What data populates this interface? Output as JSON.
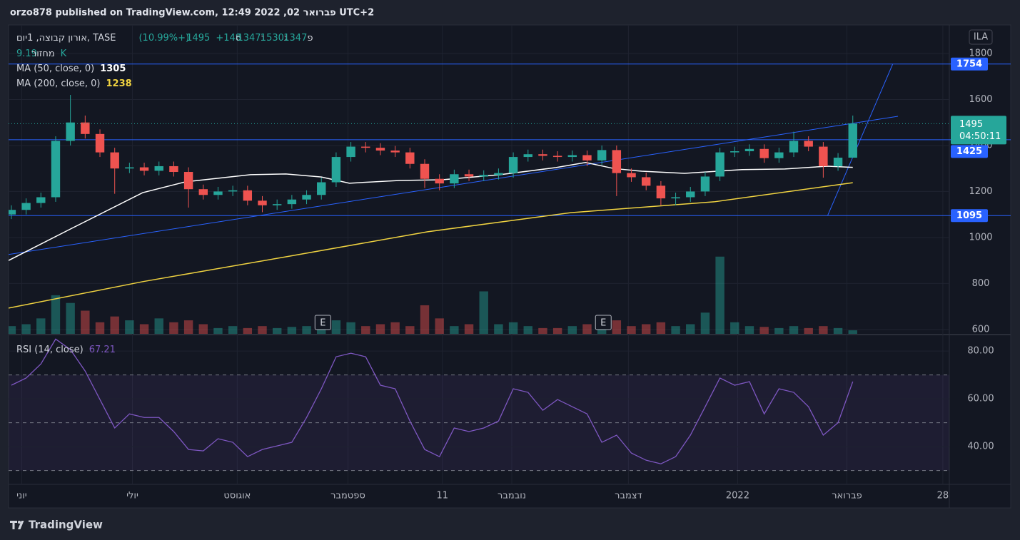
{
  "header": "orzo878 published on TradingView.com, 12:49 2022 ,02 פברואר UTC+2",
  "footer": "TradingView",
  "chart_data": [
    {
      "type": "candlestick",
      "symbol": "אורון קבוצה, 1יום, TASE",
      "ohlc_legend": [
        {
          "label": "פ",
          "value": 1347
        },
        {
          "label": "ג",
          "value": 1530
        },
        {
          "label": "נ",
          "value": 1347
        },
        {
          "label": "ס",
          "value": 1495
        }
      ],
      "change_label": "+148 (+10.99%)",
      "currency": "ILA",
      "countdown": "04:50:11",
      "up_color": "#26a69a",
      "down_color": "#ef5350",
      "x": [
        0,
        1,
        2,
        3,
        4,
        5,
        6,
        7,
        8,
        9,
        10,
        11,
        12,
        13,
        14,
        15,
        16,
        17,
        18,
        19,
        20,
        21,
        22,
        23,
        24,
        25,
        26,
        27,
        28,
        29,
        30,
        31,
        32,
        33,
        34,
        35,
        36,
        37,
        38,
        39,
        40,
        41,
        42,
        43,
        44,
        45,
        46,
        47,
        48,
        49,
        50,
        51,
        52,
        53,
        54,
        55,
        56,
        57
      ],
      "open": [
        1100,
        1120,
        1150,
        1175,
        1420,
        1500,
        1450,
        1370,
        1300,
        1305,
        1290,
        1310,
        1285,
        1210,
        1185,
        1200,
        1205,
        1160,
        1140,
        1145,
        1165,
        1185,
        1240,
        1350,
        1395,
        1390,
        1378,
        1370,
        1320,
        1255,
        1235,
        1275,
        1265,
        1272,
        1280,
        1350,
        1362,
        1355,
        1350,
        1358,
        1335,
        1380,
        1280,
        1262,
        1225,
        1170,
        1175,
        1200,
        1265,
        1370,
        1375,
        1385,
        1345,
        1370,
        1420,
        1395,
        1310,
        1347
      ],
      "high": [
        1140,
        1170,
        1195,
        1440,
        1620,
        1530,
        1470,
        1390,
        1325,
        1325,
        1330,
        1330,
        1305,
        1230,
        1220,
        1225,
        1225,
        1180,
        1165,
        1185,
        1205,
        1260,
        1370,
        1415,
        1415,
        1410,
        1398,
        1390,
        1340,
        1275,
        1295,
        1295,
        1292,
        1300,
        1370,
        1382,
        1382,
        1375,
        1378,
        1378,
        1400,
        1400,
        1300,
        1282,
        1245,
        1195,
        1220,
        1285,
        1390,
        1395,
        1405,
        1405,
        1390,
        1460,
        1440,
        1415,
        1367,
        1530
      ],
      "low": [
        1080,
        1100,
        1130,
        1155,
        1400,
        1430,
        1350,
        1190,
        1280,
        1270,
        1270,
        1265,
        1130,
        1165,
        1165,
        1180,
        1140,
        1110,
        1120,
        1125,
        1145,
        1165,
        1220,
        1330,
        1370,
        1358,
        1350,
        1300,
        1215,
        1205,
        1215,
        1245,
        1245,
        1252,
        1260,
        1330,
        1335,
        1330,
        1330,
        1310,
        1315,
        1180,
        1242,
        1205,
        1140,
        1140,
        1155,
        1180,
        1245,
        1350,
        1355,
        1325,
        1325,
        1350,
        1375,
        1260,
        1290,
        1347
      ],
      "close": [
        1120,
        1150,
        1175,
        1420,
        1500,
        1450,
        1370,
        1300,
        1305,
        1290,
        1310,
        1285,
        1210,
        1185,
        1200,
        1205,
        1160,
        1140,
        1145,
        1165,
        1185,
        1240,
        1350,
        1395,
        1390,
        1378,
        1370,
        1320,
        1255,
        1235,
        1275,
        1265,
        1272,
        1280,
        1350,
        1362,
        1355,
        1350,
        1358,
        1335,
        1380,
        1280,
        1262,
        1225,
        1170,
        1175,
        1200,
        1265,
        1370,
        1375,
        1385,
        1345,
        1370,
        1420,
        1395,
        1310,
        1347,
        1495
      ],
      "volume": {
        "name": "מחזור",
        "last_label": "9.19K",
        "lim": [
          0,
          800
        ],
        "values": [
          20,
          25,
          40,
          100,
          80,
          60,
          30,
          45,
          35,
          25,
          40,
          30,
          35,
          25,
          15,
          20,
          15,
          20,
          15,
          18,
          20,
          25,
          35,
          30,
          20,
          25,
          30,
          20,
          74,
          40,
          20,
          25,
          110,
          25,
          30,
          20,
          15,
          15,
          20,
          25,
          40,
          35,
          20,
          25,
          30,
          20,
          25,
          55,
          200,
          30,
          20,
          18,
          15,
          20,
          15,
          20,
          15,
          9.19
        ]
      },
      "series": [
        {
          "name": "MA (50, close, 0)",
          "color": "#ffffff",
          "x": [
            -0.19,
            4.1,
            8.9,
            11.8,
            16.2,
            18.6,
            21,
            22.9,
            26.3,
            29.2,
            33.1,
            36.9,
            38.9,
            40.8,
            42.7,
            45.6,
            49.5,
            52.4,
            55.3,
            57
          ],
          "values": [
            900,
            1040,
            1195,
            1242,
            1273,
            1276,
            1263,
            1236,
            1248,
            1251,
            1273,
            1304,
            1326,
            1300,
            1288,
            1279,
            1295,
            1298,
            1310,
            1305
          ]
        },
        {
          "name": "MA (200, close, 0)",
          "color": "#f0d341",
          "x": [
            -0.19,
            8.9,
            18.6,
            28.2,
            37.9,
            47.6,
            57
          ],
          "values": [
            693,
            808,
            916,
            1025,
            1108,
            1155,
            1238
          ]
        }
      ],
      "levels": [
        1754,
        1425,
        1095
      ],
      "drawing_color": "#2962ff",
      "trendlines": [
        {
          "x": [
            -0.19,
            60.06
          ],
          "values": [
            926,
            1527
          ]
        },
        {
          "x": [
            55.3,
            59.7
          ],
          "values": [
            1096,
            1753
          ]
        }
      ],
      "events": {
        "x": [
          21.1,
          40.1
        ],
        "labels": [
          "E",
          "E"
        ]
      },
      "xlim": [
        -0.19,
        63.54
      ],
      "xticks": [
        {
          "value": 0.7,
          "label": "יוני"
        },
        {
          "value": 8.2,
          "label": "יולי"
        },
        {
          "value": 15.3,
          "label": "אוגוסט"
        },
        {
          "value": 22.8,
          "label": "ספטמבר"
        },
        {
          "value": 29.2,
          "label": "11"
        },
        {
          "value": 33.9,
          "label": "נובמבר"
        },
        {
          "value": 41.8,
          "label": "דצמבר"
        },
        {
          "value": 49.2,
          "label": "2022"
        },
        {
          "value": 56.6,
          "label": "פברואר"
        },
        {
          "value": 63.1,
          "label": "28"
        }
      ],
      "ylim": [
        581,
        1924
      ],
      "yticks": [
        600,
        800,
        1000,
        1200,
        1400,
        1600,
        1800
      ],
      "grid": true
    },
    {
      "type": "line",
      "title": "RSI (14, close)",
      "color": "#7e57c2",
      "x": [
        0,
        1,
        2,
        3,
        4,
        5,
        6,
        7,
        8,
        9,
        10,
        11,
        12,
        13,
        14,
        15,
        16,
        17,
        18,
        19,
        20,
        21,
        22,
        23,
        24,
        25,
        26,
        27,
        28,
        29,
        30,
        31,
        32,
        33,
        34,
        35,
        36,
        37,
        38,
        39,
        40,
        41,
        42,
        43,
        44,
        45,
        46,
        47,
        48,
        49,
        50,
        51,
        52,
        53,
        54,
        55,
        56,
        57
      ],
      "values": [
        65.7,
        68.7,
        74.6,
        85,
        80.6,
        71.6,
        59.7,
        47.8,
        53.7,
        52.2,
        52.2,
        46.3,
        38.8,
        38.2,
        43.3,
        41.8,
        35.8,
        38.8,
        40.3,
        41.8,
        52.2,
        64.2,
        77.6,
        79.1,
        77.6,
        65.7,
        64.2,
        50.7,
        38.8,
        35.8,
        47.8,
        46.3,
        47.8,
        50.7,
        64.2,
        62.7,
        55.2,
        59.7,
        56.7,
        53.7,
        41.8,
        44.8,
        37.3,
        34.3,
        32.8,
        35.8,
        44.8,
        56.7,
        68.7,
        65.7,
        67.2,
        53.7,
        64.2,
        62.7,
        56.7,
        44.8,
        50,
        67.21
      ],
      "levels": [
        30,
        50,
        70
      ],
      "xlim": [
        -0.19,
        63.54
      ],
      "ylim": [
        24.5,
        86.6
      ],
      "yticks": [
        {
          "value": 40,
          "label": "40.00"
        },
        {
          "value": 60,
          "label": "60.00"
        },
        {
          "value": 80,
          "label": "80.00"
        }
      ],
      "grid": true
    }
  ]
}
